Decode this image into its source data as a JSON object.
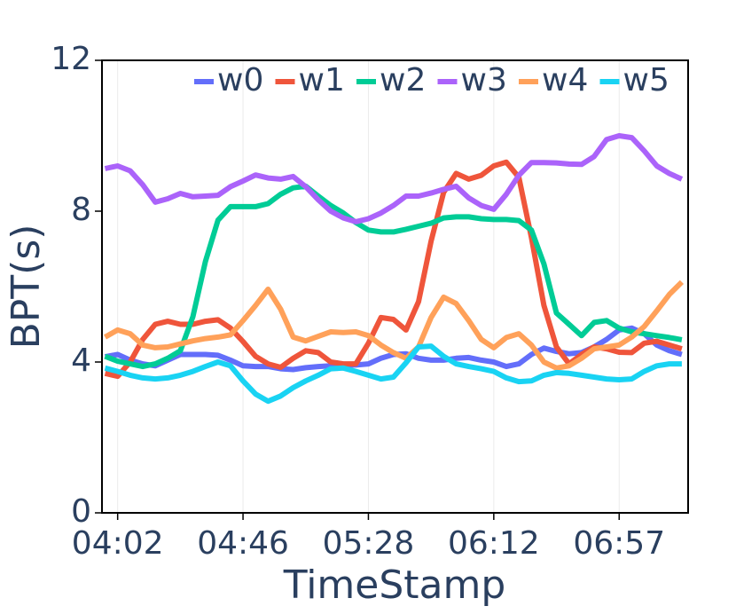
{
  "chart_data": {
    "type": "line",
    "y_label": "BPT(s)",
    "x_label": "TimeStamp",
    "categories": [
      null,
      "04:02",
      null,
      null,
      null,
      null,
      null,
      null,
      null,
      null,
      null,
      "04:46",
      null,
      null,
      null,
      null,
      null,
      null,
      null,
      null,
      null,
      "05:28",
      null,
      null,
      null,
      null,
      null,
      null,
      null,
      null,
      null,
      "06:12",
      null,
      null,
      null,
      null,
      null,
      null,
      null,
      null,
      null,
      "06:57",
      null,
      null,
      null,
      null,
      null
    ],
    "ylim": [
      0,
      12
    ],
    "yticks": [
      0,
      4,
      8,
      12
    ],
    "grid": true,
    "legend": "top-right",
    "series": [
      {
        "name": "w0",
        "color": "#636efa",
        "values": [
          4.14,
          4.2,
          4.05,
          3.95,
          3.9,
          4.05,
          4.2,
          4.2,
          4.2,
          4.18,
          4.05,
          3.9,
          3.88,
          3.88,
          3.82,
          3.8,
          3.85,
          3.88,
          3.9,
          3.92,
          3.92,
          3.95,
          4.1,
          4.2,
          4.22,
          4.1,
          4.05,
          4.05,
          4.1,
          4.12,
          4.05,
          4.0,
          3.88,
          3.95,
          4.2,
          4.37,
          4.28,
          4.22,
          4.25,
          4.4,
          4.6,
          4.85,
          4.9,
          4.75,
          4.45,
          4.3,
          4.2
        ]
      },
      {
        "name": "w1",
        "color": "#ef553b",
        "values": [
          3.7,
          3.62,
          4.0,
          4.6,
          5.0,
          5.08,
          5.0,
          5.0,
          5.08,
          5.12,
          4.9,
          4.54,
          4.15,
          3.95,
          3.86,
          4.1,
          4.3,
          4.25,
          4.0,
          3.95,
          3.95,
          4.5,
          5.18,
          5.13,
          4.85,
          5.6,
          7.2,
          8.5,
          9.0,
          8.85,
          8.95,
          9.2,
          9.3,
          8.9,
          7.3,
          5.5,
          4.4,
          3.95,
          4.2,
          4.4,
          4.35,
          4.26,
          4.25,
          4.5,
          4.55,
          4.45,
          4.35
        ]
      },
      {
        "name": "w2",
        "color": "#00cc96",
        "values": [
          4.15,
          4.02,
          3.95,
          3.88,
          3.95,
          4.1,
          4.3,
          5.2,
          6.66,
          7.76,
          8.12,
          8.12,
          8.12,
          8.2,
          8.45,
          8.62,
          8.66,
          8.4,
          8.15,
          7.95,
          7.7,
          7.5,
          7.45,
          7.45,
          7.52,
          7.6,
          7.68,
          7.82,
          7.85,
          7.85,
          7.8,
          7.78,
          7.78,
          7.75,
          7.5,
          6.6,
          5.3,
          5.0,
          4.7,
          5.05,
          5.1,
          4.9,
          4.8,
          4.75,
          4.7,
          4.65,
          4.59
        ]
      },
      {
        "name": "w3",
        "color": "#ab63fa",
        "values": [
          9.13,
          9.2,
          9.07,
          8.7,
          8.24,
          8.33,
          8.47,
          8.38,
          8.4,
          8.42,
          8.65,
          8.8,
          8.96,
          8.88,
          8.85,
          8.92,
          8.65,
          8.3,
          8.0,
          7.82,
          7.72,
          7.8,
          7.95,
          8.15,
          8.4,
          8.4,
          8.48,
          8.58,
          8.66,
          8.35,
          8.15,
          8.05,
          8.45,
          8.95,
          9.29,
          9.29,
          9.28,
          9.25,
          9.24,
          9.45,
          9.9,
          10.0,
          9.95,
          9.6,
          9.2,
          9.0,
          8.85
        ]
      },
      {
        "name": "w4",
        "color": "#ffa15a",
        "values": [
          4.66,
          4.85,
          4.75,
          4.45,
          4.38,
          4.4,
          4.48,
          4.56,
          4.62,
          4.66,
          4.72,
          5.1,
          5.5,
          5.93,
          5.4,
          4.66,
          4.56,
          4.68,
          4.8,
          4.78,
          4.8,
          4.7,
          4.45,
          4.25,
          4.1,
          4.4,
          5.18,
          5.72,
          5.55,
          5.1,
          4.6,
          4.38,
          4.65,
          4.75,
          4.45,
          4.0,
          3.84,
          3.9,
          4.1,
          4.35,
          4.4,
          4.45,
          4.66,
          4.94,
          5.36,
          5.79,
          6.12
        ]
      },
      {
        "name": "w5",
        "color": "#19d3f3",
        "values": [
          3.84,
          3.75,
          3.65,
          3.58,
          3.55,
          3.58,
          3.65,
          3.75,
          3.88,
          4.0,
          3.9,
          3.5,
          3.15,
          2.96,
          3.1,
          3.32,
          3.5,
          3.65,
          3.82,
          3.84,
          3.75,
          3.65,
          3.55,
          3.6,
          3.98,
          4.4,
          4.42,
          4.15,
          3.95,
          3.88,
          3.82,
          3.75,
          3.58,
          3.48,
          3.5,
          3.65,
          3.72,
          3.7,
          3.65,
          3.6,
          3.55,
          3.53,
          3.55,
          3.75,
          3.9,
          3.95,
          3.95
        ]
      }
    ]
  }
}
